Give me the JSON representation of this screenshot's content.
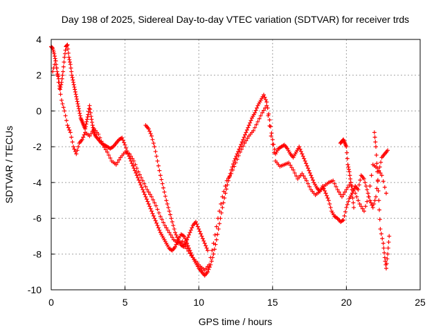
{
  "chart_data": {
    "type": "scatter",
    "title": "Day 198 of 2025, Sidereal Day-to-day VTEC variation (SDTVAR) for receiver trds",
    "xlabel": "GPS time / hours",
    "ylabel": "SDTVAR / TECUs",
    "xlim": [
      0,
      25
    ],
    "ylim": [
      -10,
      4
    ],
    "xticks": [
      0,
      5,
      10,
      15,
      20,
      25
    ],
    "yticks": [
      -10,
      -8,
      -6,
      -4,
      -2,
      0,
      2,
      4
    ],
    "grid": true,
    "marker": "+",
    "series": [
      {
        "name": "SDTVAR",
        "color": "#ff0000",
        "x": [
          0.0,
          0.1,
          0.2,
          0.3,
          0.4,
          0.5,
          0.6,
          0.7,
          0.8,
          0.9,
          1.0,
          1.1,
          1.2,
          1.3,
          1.4,
          1.5,
          1.6,
          1.7,
          1.8,
          1.9,
          2.0,
          2.1,
          2.2,
          2.3,
          2.4,
          2.5,
          2.6,
          2.7,
          2.8,
          2.9,
          3.0,
          3.2,
          3.4,
          3.6,
          3.8,
          4.0,
          4.2,
          4.4,
          4.6,
          4.8,
          5.0,
          5.2,
          5.4,
          5.6,
          5.8,
          6.0,
          6.2,
          6.4,
          6.6,
          6.8,
          7.0,
          7.2,
          7.4,
          7.6,
          7.8,
          8.0,
          8.2,
          8.4,
          8.6,
          8.8,
          9.0,
          9.2,
          9.4,
          9.6,
          9.8,
          10.0,
          10.2,
          10.4,
          10.6,
          10.8,
          11.0,
          11.2,
          11.4,
          11.6,
          11.8,
          12.0,
          12.2,
          12.4,
          12.6,
          12.8,
          13.0,
          13.2,
          13.4,
          13.6,
          13.8,
          14.0,
          14.2,
          14.4,
          14.6,
          14.8,
          15.0,
          15.2,
          15.4,
          15.6,
          15.8,
          16.0,
          16.2,
          16.4,
          16.6,
          16.8,
          17.0,
          17.2,
          17.4,
          17.6,
          17.8,
          18.0,
          18.2,
          18.4,
          18.6,
          18.8,
          19.0,
          19.2,
          19.4,
          19.6,
          19.8,
          20.0,
          20.2,
          20.4,
          20.6,
          20.8,
          21.0,
          21.2,
          21.4,
          21.6,
          21.8,
          22.0,
          22.2,
          22.4,
          22.6,
          22.8,
          0.1,
          0.3,
          0.5,
          0.7,
          0.9,
          1.1,
          1.3,
          1.5,
          1.7,
          1.9,
          2.1,
          2.3,
          2.6,
          2.9,
          3.2,
          3.5,
          3.8,
          4.1,
          4.4,
          4.7,
          5.0,
          5.3,
          5.6,
          5.9,
          6.2,
          6.5,
          6.8,
          7.1,
          7.4,
          7.7,
          8.0,
          8.3,
          8.6,
          8.9,
          9.2,
          9.5,
          9.8,
          10.1,
          10.4,
          10.7,
          11.0,
          11.3,
          11.6,
          11.9,
          12.2,
          12.5,
          12.8,
          13.1,
          13.4,
          13.7,
          14.0,
          14.3,
          14.6,
          14.9,
          15.2,
          15.5,
          15.8,
          16.1,
          16.4,
          16.7,
          17.0,
          17.3,
          17.6,
          17.9,
          18.2,
          18.5,
          18.8,
          19.1,
          19.4,
          19.7,
          20.0,
          20.3,
          20.6,
          20.9,
          21.2,
          21.5,
          21.8,
          22.1,
          22.4,
          22.7,
          6.4,
          6.6,
          6.8,
          7.0,
          7.2,
          7.4,
          7.6,
          7.8,
          8.0,
          8.2,
          8.4,
          8.6,
          8.8,
          9.0,
          9.2,
          9.4,
          9.6,
          9.8,
          10.0,
          10.2,
          10.4,
          10.6,
          19.6,
          19.7,
          19.8,
          19.9,
          20.0,
          20.1,
          20.2,
          20.3,
          20.4,
          20.5,
          21.9,
          22.0,
          22.1,
          22.2,
          22.3,
          22.5,
          22.6,
          22.7,
          22.8,
          22.9
        ],
        "y": [
          3.6,
          3.5,
          3.2,
          2.8,
          2.2,
          1.8,
          1.2,
          1.6,
          2.2,
          3.0,
          3.6,
          3.7,
          3.0,
          2.6,
          2.0,
          1.6,
          1.2,
          0.8,
          0.4,
          0.0,
          -0.4,
          -0.6,
          -0.8,
          -1.0,
          -0.6,
          -0.2,
          0.3,
          -0.3,
          -0.8,
          -1.2,
          -1.4,
          -1.6,
          -1.8,
          -1.9,
          -2.0,
          -2.1,
          -2.0,
          -1.8,
          -1.6,
          -1.5,
          -1.9,
          -2.4,
          -2.8,
          -3.2,
          -3.6,
          -4.0,
          -4.4,
          -4.8,
          -5.2,
          -5.6,
          -6.0,
          -6.4,
          -6.8,
          -7.1,
          -7.4,
          -7.7,
          -7.8,
          -7.6,
          -7.2,
          -6.9,
          -7.0,
          -7.4,
          -7.8,
          -8.2,
          -8.5,
          -8.8,
          -9.0,
          -9.2,
          -9.0,
          -8.6,
          -8.0,
          -7.2,
          -6.3,
          -5.4,
          -4.6,
          -3.9,
          -3.3,
          -2.8,
          -2.4,
          -2.0,
          -1.6,
          -1.2,
          -0.8,
          -0.4,
          -0.1,
          0.3,
          0.6,
          0.9,
          0.5,
          -0.5,
          -1.6,
          -2.4,
          -2.1,
          -2.0,
          -1.9,
          -2.1,
          -2.4,
          -2.6,
          -2.3,
          -2.0,
          -2.4,
          -2.8,
          -3.2,
          -3.6,
          -4.0,
          -4.3,
          -4.5,
          -4.2,
          -4.6,
          -5.0,
          -5.6,
          -5.9,
          -6.0,
          -6.2,
          -6.1,
          -5.4,
          -4.9,
          -4.6,
          -4.2,
          -4.4,
          -3.6,
          -3.8,
          -4.4,
          -5.0,
          -5.4,
          -4.8,
          -3.4,
          -2.6,
          -2.4,
          -2.2,
          2.2,
          2.8,
          1.6,
          0.6,
          0.0,
          -0.8,
          -1.2,
          -2.0,
          -2.4,
          -1.8,
          -1.6,
          -1.2,
          -1.4,
          -1.0,
          -1.3,
          -1.9,
          -2.3,
          -2.8,
          -3.0,
          -2.6,
          -2.3,
          -2.4,
          -2.8,
          -3.4,
          -3.9,
          -4.4,
          -4.8,
          -5.3,
          -5.9,
          -6.4,
          -6.8,
          -7.2,
          -7.4,
          -7.3,
          -7.7,
          -8.1,
          -8.4,
          -8.7,
          -8.9,
          -8.6,
          -7.4,
          -6.0,
          -4.8,
          -3.9,
          -3.5,
          -2.9,
          -2.3,
          -1.8,
          -1.4,
          -1.1,
          -0.6,
          -0.1,
          0.3,
          -1.4,
          -2.8,
          -3.1,
          -3.0,
          -2.9,
          -3.3,
          -3.8,
          -3.5,
          -3.9,
          -4.4,
          -4.7,
          -4.5,
          -4.2,
          -4.0,
          -3.9,
          -4.4,
          -4.8,
          -4.4,
          -4.0,
          -4.6,
          -5.2,
          -5.6,
          -4.8,
          -3.0,
          -3.2,
          -3.6,
          -4.6,
          -0.8,
          -1.0,
          -1.4,
          -2.0,
          -2.8,
          -3.6,
          -4.3,
          -5.0,
          -5.6,
          -6.2,
          -6.8,
          -7.2,
          -7.5,
          -7.6,
          -7.2,
          -6.8,
          -6.4,
          -6.2,
          -6.6,
          -7.0,
          -7.4,
          -7.8,
          -1.8,
          -1.7,
          -1.6,
          -1.8,
          -2.0,
          -3.0,
          -3.4,
          -4.0,
          -4.6,
          -5.4,
          -1.2,
          -2.0,
          -3.4,
          -5.0,
          -6.6,
          -7.4,
          -8.2,
          -8.8,
          -8.0,
          -7.0
        ]
      }
    ]
  }
}
